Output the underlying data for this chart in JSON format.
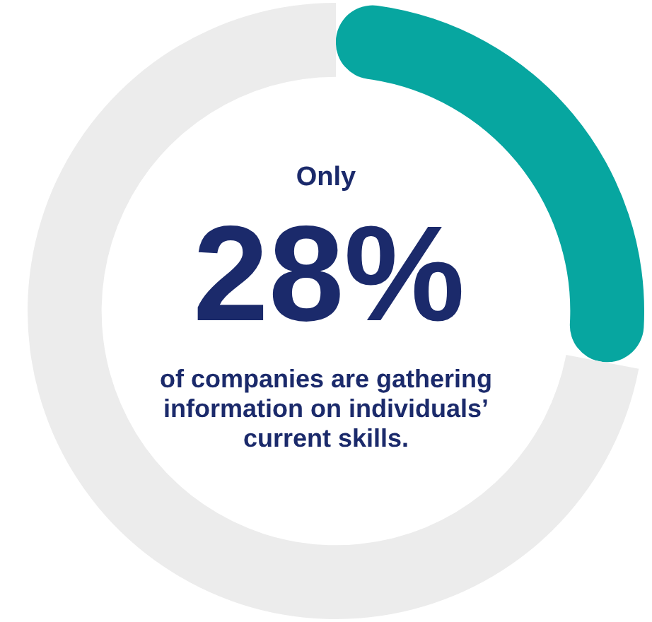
{
  "chart_data": {
    "type": "donut",
    "categories": [
      null,
      null
    ],
    "values": [
      28,
      72
    ],
    "colors": [
      "#07a6a0",
      "#ececec"
    ],
    "value_labels": [
      "28%",
      null
    ],
    "annotations": [
      "Only",
      "of companies are gathering information on individuals’ current skills."
    ],
    "legend": false
  }
}
